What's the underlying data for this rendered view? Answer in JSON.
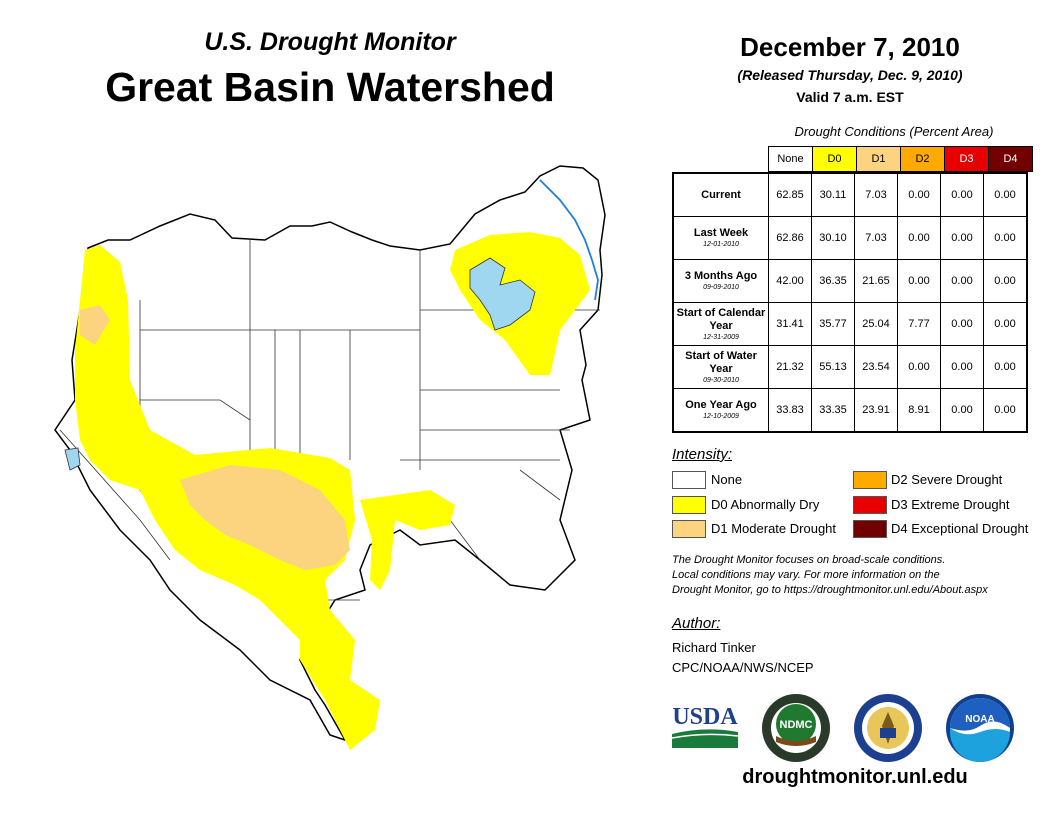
{
  "header": {
    "subtitle": "U.S. Drought Monitor",
    "title": "Great Basin Watershed",
    "date": "December 7, 2010",
    "released": "(Released Thursday, Dec. 9, 2010)",
    "valid": "Valid 7 a.m. EST"
  },
  "table": {
    "title": "Drought Conditions (Percent Area)",
    "columns": [
      "None",
      "D0",
      "D1",
      "D2",
      "D3",
      "D4"
    ],
    "column_colors": [
      "#ffffff",
      "#ffff00",
      "#fcd37f",
      "#ffaa00",
      "#e60000",
      "#730000"
    ],
    "rows": [
      {
        "label": "Current",
        "date": "",
        "values": [
          "62.85",
          "30.11",
          "7.03",
          "0.00",
          "0.00",
          "0.00"
        ]
      },
      {
        "label": "Last Week",
        "date": "12-01-2010",
        "values": [
          "62.86",
          "30.10",
          "7.03",
          "0.00",
          "0.00",
          "0.00"
        ]
      },
      {
        "label": "3 Months Ago",
        "date": "09-09-2010",
        "values": [
          "42.00",
          "36.35",
          "21.65",
          "0.00",
          "0.00",
          "0.00"
        ]
      },
      {
        "label": "Start of Calendar Year",
        "date": "12-31-2009",
        "values": [
          "31.41",
          "35.77",
          "25.04",
          "7.77",
          "0.00",
          "0.00"
        ]
      },
      {
        "label": "Start of Water Year",
        "date": "09-30-2010",
        "values": [
          "21.32",
          "55.13",
          "23.54",
          "0.00",
          "0.00",
          "0.00"
        ]
      },
      {
        "label": "One Year Ago",
        "date": "12-10-2009",
        "values": [
          "33.83",
          "33.35",
          "23.91",
          "8.91",
          "0.00",
          "0.00"
        ]
      }
    ]
  },
  "legend": {
    "title": "Intensity:",
    "items": [
      {
        "label": "None",
        "color": "#ffffff"
      },
      {
        "label": "D0 Abnormally Dry",
        "color": "#ffff00"
      },
      {
        "label": "D1 Moderate Drought",
        "color": "#fcd37f"
      },
      {
        "label": "D2 Severe Drought",
        "color": "#ffaa00"
      },
      {
        "label": "D3 Extreme Drought",
        "color": "#e60000"
      },
      {
        "label": "D4 Exceptional Drought",
        "color": "#730000"
      }
    ]
  },
  "note": {
    "line1": "The Drought Monitor focuses on broad-scale conditions.",
    "line2": "Local conditions may vary. For more information on the",
    "line3": "Drought Monitor, go to https://droughtmonitor.unl.edu/About.aspx"
  },
  "author": {
    "heading": "Author:",
    "name": "Richard Tinker",
    "org": "CPC/NOAA/NWS/NCEP"
  },
  "logos": {
    "usda": "USDA",
    "ndmc": "NDMC",
    "noaa": "NOAA"
  },
  "footer": {
    "url": "droughtmonitor.unl.edu"
  },
  "map_colors": {
    "lake": "#9fd6f0",
    "river": "#1e7fe0",
    "d0": "#ffff00",
    "d1": "#fcd37f"
  }
}
